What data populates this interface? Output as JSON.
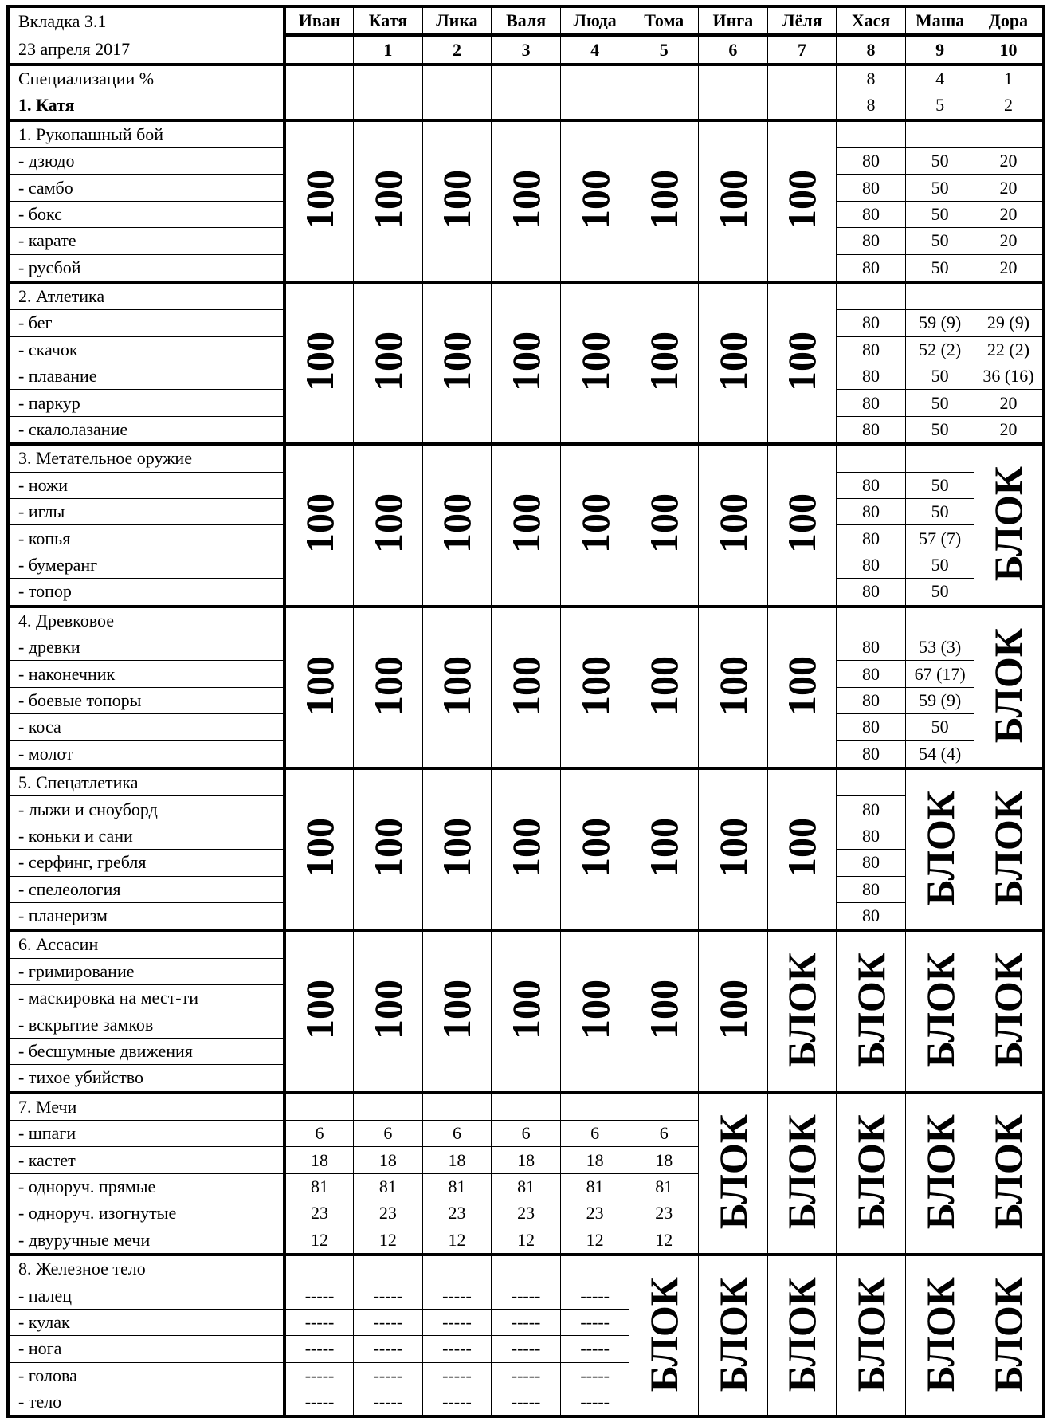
{
  "header": {
    "title": "Вкладка 3.1",
    "date": "23 апреля 2017",
    "names": [
      "Иван",
      "Катя",
      "Лика",
      "Валя",
      "Люда",
      "Тома",
      "Инга",
      "Лёля",
      "Хася",
      "Маша",
      "Дора"
    ],
    "numbers": [
      "",
      "1",
      "2",
      "3",
      "4",
      "5",
      "6",
      "7",
      "8",
      "9",
      "10"
    ]
  },
  "summary_rows": [
    {
      "label": "Специализации %",
      "bold": false,
      "values": [
        "",
        "",
        "",
        "",
        "",
        "",
        "",
        "",
        "8",
        "4",
        "1"
      ]
    },
    {
      "label": "1. Катя",
      "bold": true,
      "values": [
        "",
        "",
        "",
        "",
        "",
        "",
        "",
        "",
        "8",
        "5",
        "2"
      ]
    }
  ],
  "sections": [
    {
      "title": "1. Рукопашный бой",
      "items": [
        "- дзюдо",
        "- самбо",
        "- бокс",
        "- карате",
        "- русбой"
      ],
      "cols": [
        {
          "merged": "100"
        },
        {
          "merged": "100"
        },
        {
          "merged": "100"
        },
        {
          "merged": "100"
        },
        {
          "merged": "100"
        },
        {
          "merged": "100"
        },
        {
          "merged": "100"
        },
        {
          "merged": "100"
        },
        {
          "values": [
            "80",
            "80",
            "80",
            "80",
            "80"
          ]
        },
        {
          "values": [
            "50",
            "50",
            "50",
            "50",
            "50"
          ]
        },
        {
          "values": [
            "20",
            "20",
            "20",
            "20",
            "20"
          ]
        }
      ]
    },
    {
      "title": "2. Атлетика",
      "items": [
        "- бег",
        "- скачок",
        "- плавание",
        "- паркур",
        "- скалолазание"
      ],
      "cols": [
        {
          "merged": "100"
        },
        {
          "merged": "100"
        },
        {
          "merged": "100"
        },
        {
          "merged": "100"
        },
        {
          "merged": "100"
        },
        {
          "merged": "100"
        },
        {
          "merged": "100"
        },
        {
          "merged": "100"
        },
        {
          "values": [
            "80",
            "80",
            "80",
            "80",
            "80"
          ]
        },
        {
          "values": [
            "59 (9)",
            "52 (2)",
            "50",
            "50",
            "50"
          ]
        },
        {
          "values": [
            "29 (9)",
            "22 (2)",
            "36 (16)",
            "20",
            "20"
          ]
        }
      ]
    },
    {
      "title": "3. Метательное оружие",
      "items": [
        "- ножи",
        "- иглы",
        "- копья",
        "- бумеранг",
        "- топор"
      ],
      "cols": [
        {
          "merged": "100"
        },
        {
          "merged": "100"
        },
        {
          "merged": "100"
        },
        {
          "merged": "100"
        },
        {
          "merged": "100"
        },
        {
          "merged": "100"
        },
        {
          "merged": "100"
        },
        {
          "merged": "100"
        },
        {
          "values": [
            "80",
            "80",
            "80",
            "80",
            "80"
          ]
        },
        {
          "values": [
            "50",
            "50",
            "57 (7)",
            "50",
            "50"
          ]
        },
        {
          "merged": "БЛОК"
        }
      ]
    },
    {
      "title": "4. Древковое",
      "items": [
        "- древки",
        "- наконечник",
        "- боевые топоры",
        "- коса",
        "- молот"
      ],
      "cols": [
        {
          "merged": "100"
        },
        {
          "merged": "100"
        },
        {
          "merged": "100"
        },
        {
          "merged": "100"
        },
        {
          "merged": "100"
        },
        {
          "merged": "100"
        },
        {
          "merged": "100"
        },
        {
          "merged": "100"
        },
        {
          "values": [
            "80",
            "80",
            "80",
            "80",
            "80"
          ]
        },
        {
          "values": [
            "53 (3)",
            "67 (17)",
            "59 (9)",
            "50",
            "54 (4)"
          ]
        },
        {
          "merged": "БЛОК"
        }
      ]
    },
    {
      "title": "5. Спецатлетика",
      "items": [
        "- лыжи и сноуборд",
        "- коньки и сани",
        "- серфинг, гребля",
        "- спелеология",
        "- планеризм"
      ],
      "cols": [
        {
          "merged": "100"
        },
        {
          "merged": "100"
        },
        {
          "merged": "100"
        },
        {
          "merged": "100"
        },
        {
          "merged": "100"
        },
        {
          "merged": "100"
        },
        {
          "merged": "100"
        },
        {
          "merged": "100"
        },
        {
          "values": [
            "80",
            "80",
            "80",
            "80",
            "80"
          ]
        },
        {
          "merged": "БЛОК"
        },
        {
          "merged": "БЛОК"
        }
      ]
    },
    {
      "title": "6. Ассасин",
      "items": [
        "- гримирование",
        "- маскировка на мест-ти",
        "- вскрытие замков",
        "- бесшумные движения",
        "- тихое убийство"
      ],
      "cols": [
        {
          "merged": "100"
        },
        {
          "merged": "100"
        },
        {
          "merged": "100"
        },
        {
          "merged": "100"
        },
        {
          "merged": "100"
        },
        {
          "merged": "100"
        },
        {
          "merged": "100"
        },
        {
          "merged": "БЛОК"
        },
        {
          "merged": "БЛОК"
        },
        {
          "merged": "БЛОК"
        },
        {
          "merged": "БЛОК"
        }
      ]
    },
    {
      "title": "7. Мечи",
      "items": [
        "- шпаги",
        "- кастет",
        "- одноруч. прямые",
        "- одноруч. изогнутые",
        "- двуручные мечи"
      ],
      "cols": [
        {
          "values": [
            "6",
            "18",
            "81",
            "23",
            "12"
          ]
        },
        {
          "values": [
            "6",
            "18",
            "81",
            "23",
            "12"
          ]
        },
        {
          "values": [
            "6",
            "18",
            "81",
            "23",
            "12"
          ]
        },
        {
          "values": [
            "6",
            "18",
            "81",
            "23",
            "12"
          ]
        },
        {
          "values": [
            "6",
            "18",
            "81",
            "23",
            "12"
          ]
        },
        {
          "values": [
            "6",
            "18",
            "81",
            "23",
            "12"
          ]
        },
        {
          "merged": "БЛОК"
        },
        {
          "merged": "БЛОК"
        },
        {
          "merged": "БЛОК"
        },
        {
          "merged": "БЛОК"
        },
        {
          "merged": "БЛОК"
        }
      ]
    },
    {
      "title": "8. Железное тело",
      "items": [
        "- палец",
        "- кулак",
        "- нога",
        "- голова",
        "- тело"
      ],
      "cols": [
        {
          "values": [
            "-----",
            "-----",
            "-----",
            "-----",
            "-----"
          ]
        },
        {
          "values": [
            "-----",
            "-----",
            "-----",
            "-----",
            "-----"
          ]
        },
        {
          "values": [
            "-----",
            "-----",
            "-----",
            "-----",
            "-----"
          ]
        },
        {
          "values": [
            "-----",
            "-----",
            "-----",
            "-----",
            "-----"
          ]
        },
        {
          "values": [
            "-----",
            "-----",
            "-----",
            "-----",
            "-----"
          ]
        },
        {
          "merged": "БЛОК"
        },
        {
          "merged": "БЛОК"
        },
        {
          "merged": "БЛОК"
        },
        {
          "merged": "БЛОК"
        },
        {
          "merged": "БЛОК"
        },
        {
          "merged": "БЛОК"
        }
      ]
    }
  ]
}
